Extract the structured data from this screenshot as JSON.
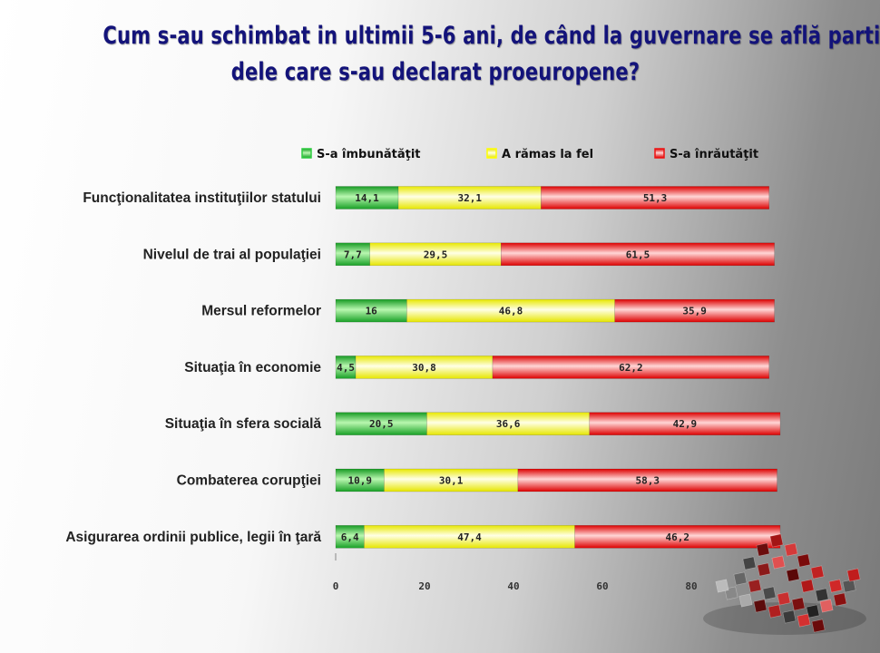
{
  "title": {
    "line1": "Cum s-au schimbat in ultimii 5-6 ani, de când la guvernare se află parti",
    "line2": "dele care s-au declarat proeuropene?"
  },
  "chart_data": {
    "type": "bar",
    "orientation": "horizontal",
    "stacked": true,
    "categories": [
      "Funcţionalitatea instituţiilor statului",
      "Nivelul de trai al populaţiei",
      "Mersul reformelor",
      "Situaţia în economie",
      "Situaţia în sfera socială",
      "Combaterea corupţiei",
      "Asigurarea ordinii publice, legii în ţară"
    ],
    "series": [
      {
        "name": "S-a îmbunătăţit",
        "color": "#2ecc40",
        "values": [
          14.1,
          7.7,
          16,
          4.5,
          20.5,
          10.9,
          6.4
        ],
        "labels": [
          "14,1",
          "7,7",
          "16",
          "4,5",
          "20,5",
          "10,9",
          "6,4"
        ]
      },
      {
        "name": "A rămas la fel",
        "color": "#ffff00",
        "values": [
          32.1,
          29.5,
          46.8,
          30.8,
          36.6,
          30.1,
          47.4
        ],
        "labels": [
          "32,1",
          "29,5",
          "46,8",
          "30,8",
          "36,6",
          "30,1",
          "47,4"
        ]
      },
      {
        "name": "S-a înrăutăţit",
        "color": "#ee1111",
        "values": [
          51.3,
          61.5,
          35.9,
          62.2,
          42.9,
          58.3,
          46.2
        ],
        "labels": [
          "51,3",
          "61,5",
          "35,9",
          "62,2",
          "42,9",
          "58,3",
          "46,2"
        ]
      }
    ],
    "xticks": [
      "0",
      "20",
      "40",
      "60",
      "80"
    ],
    "xlim": [
      0,
      100
    ],
    "legend": "top",
    "grid": false
  }
}
